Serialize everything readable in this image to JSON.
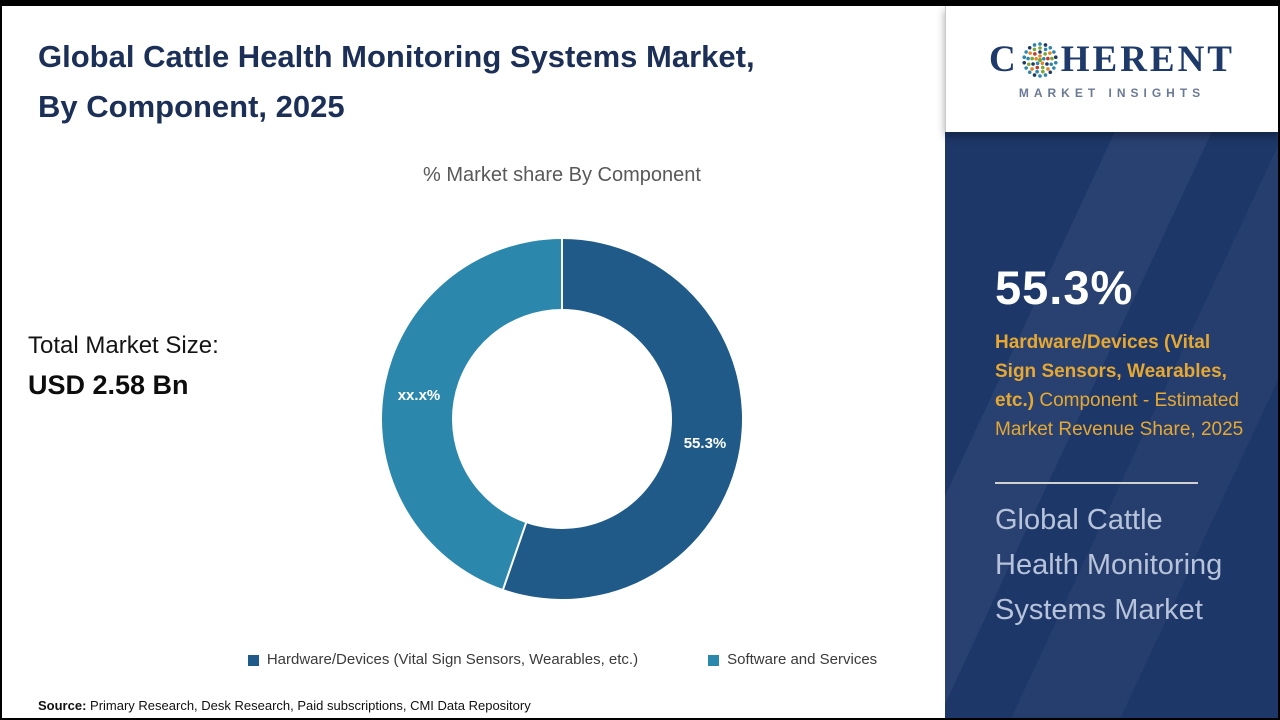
{
  "page": {
    "title_line1": "Global Cattle Health Monitoring Systems Market,",
    "title_line2": "By Component, 2025",
    "total_market_label": "Total Market Size:",
    "total_market_value": "USD 2.58 Bn",
    "source_label": "Source:",
    "source_text": " Primary Research, Desk Research, Paid subscriptions, CMI Data Repository"
  },
  "chart_data": {
    "type": "pie",
    "donut": true,
    "title": "% Market share By Component",
    "start_angle_deg": 0,
    "direction": "clockwise",
    "inner_radius_ratio": 0.61,
    "legend_position": "bottom",
    "series": [
      {
        "name": "Hardware/Devices (Vital Sign Sensors, Wearables, etc.)",
        "value": 55.3,
        "label": "55.3%",
        "color": "#1f5a88"
      },
      {
        "name": "Software and Services",
        "value": 44.7,
        "label": "xx.x%",
        "color": "#2b87ac"
      }
    ]
  },
  "sidebar": {
    "logo": {
      "prefix": "C",
      "suffix": "HERENT",
      "subtitle": "MARKET INSIGHTS"
    },
    "stat_value": "55.3%",
    "stat_desc_bold": "Hardware/Devices (Vital Sign Sensors, Wearables, etc.)",
    "stat_desc_rest": " Component - Estimated Market Revenue Share, 2025",
    "market_name": "Global Cattle Health Monitoring Systems Market",
    "colors": {
      "panel_background": "#1d3768",
      "accent_gold": "#e6a832",
      "market_text": "#b7c3da",
      "stat_text": "#ffffff"
    }
  }
}
